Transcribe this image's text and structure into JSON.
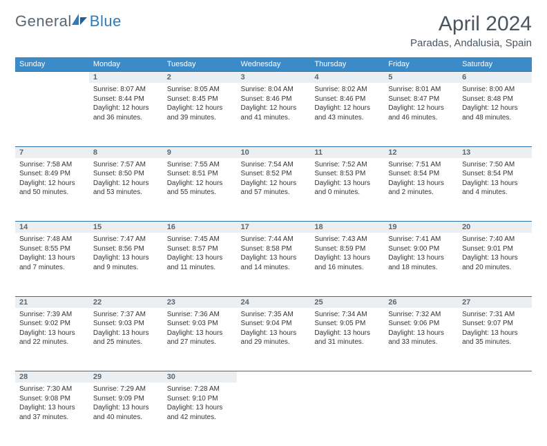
{
  "logo": {
    "part1": "General",
    "part2": "Blue"
  },
  "title": "April 2024",
  "location": "Paradas, Andalusia, Spain",
  "colors": {
    "header_bg": "#3b8bc9",
    "header_text": "#ffffff",
    "daynum_bg": "#eceff2",
    "border": "#2b6fa8",
    "logo_gray": "#5a6670",
    "logo_blue": "#2b7bbf"
  },
  "weekdays": [
    "Sunday",
    "Monday",
    "Tuesday",
    "Wednesday",
    "Thursday",
    "Friday",
    "Saturday"
  ],
  "weeks": [
    [
      null,
      {
        "d": "1",
        "sr": "8:07 AM",
        "ss": "8:44 PM",
        "dl": "12 hours and 36 minutes."
      },
      {
        "d": "2",
        "sr": "8:05 AM",
        "ss": "8:45 PM",
        "dl": "12 hours and 39 minutes."
      },
      {
        "d": "3",
        "sr": "8:04 AM",
        "ss": "8:46 PM",
        "dl": "12 hours and 41 minutes."
      },
      {
        "d": "4",
        "sr": "8:02 AM",
        "ss": "8:46 PM",
        "dl": "12 hours and 43 minutes."
      },
      {
        "d": "5",
        "sr": "8:01 AM",
        "ss": "8:47 PM",
        "dl": "12 hours and 46 minutes."
      },
      {
        "d": "6",
        "sr": "8:00 AM",
        "ss": "8:48 PM",
        "dl": "12 hours and 48 minutes."
      }
    ],
    [
      {
        "d": "7",
        "sr": "7:58 AM",
        "ss": "8:49 PM",
        "dl": "12 hours and 50 minutes."
      },
      {
        "d": "8",
        "sr": "7:57 AM",
        "ss": "8:50 PM",
        "dl": "12 hours and 53 minutes."
      },
      {
        "d": "9",
        "sr": "7:55 AM",
        "ss": "8:51 PM",
        "dl": "12 hours and 55 minutes."
      },
      {
        "d": "10",
        "sr": "7:54 AM",
        "ss": "8:52 PM",
        "dl": "12 hours and 57 minutes."
      },
      {
        "d": "11",
        "sr": "7:52 AM",
        "ss": "8:53 PM",
        "dl": "13 hours and 0 minutes."
      },
      {
        "d": "12",
        "sr": "7:51 AM",
        "ss": "8:54 PM",
        "dl": "13 hours and 2 minutes."
      },
      {
        "d": "13",
        "sr": "7:50 AM",
        "ss": "8:54 PM",
        "dl": "13 hours and 4 minutes."
      }
    ],
    [
      {
        "d": "14",
        "sr": "7:48 AM",
        "ss": "8:55 PM",
        "dl": "13 hours and 7 minutes."
      },
      {
        "d": "15",
        "sr": "7:47 AM",
        "ss": "8:56 PM",
        "dl": "13 hours and 9 minutes."
      },
      {
        "d": "16",
        "sr": "7:45 AM",
        "ss": "8:57 PM",
        "dl": "13 hours and 11 minutes."
      },
      {
        "d": "17",
        "sr": "7:44 AM",
        "ss": "8:58 PM",
        "dl": "13 hours and 14 minutes."
      },
      {
        "d": "18",
        "sr": "7:43 AM",
        "ss": "8:59 PM",
        "dl": "13 hours and 16 minutes."
      },
      {
        "d": "19",
        "sr": "7:41 AM",
        "ss": "9:00 PM",
        "dl": "13 hours and 18 minutes."
      },
      {
        "d": "20",
        "sr": "7:40 AM",
        "ss": "9:01 PM",
        "dl": "13 hours and 20 minutes."
      }
    ],
    [
      {
        "d": "21",
        "sr": "7:39 AM",
        "ss": "9:02 PM",
        "dl": "13 hours and 22 minutes."
      },
      {
        "d": "22",
        "sr": "7:37 AM",
        "ss": "9:03 PM",
        "dl": "13 hours and 25 minutes."
      },
      {
        "d": "23",
        "sr": "7:36 AM",
        "ss": "9:03 PM",
        "dl": "13 hours and 27 minutes."
      },
      {
        "d": "24",
        "sr": "7:35 AM",
        "ss": "9:04 PM",
        "dl": "13 hours and 29 minutes."
      },
      {
        "d": "25",
        "sr": "7:34 AM",
        "ss": "9:05 PM",
        "dl": "13 hours and 31 minutes."
      },
      {
        "d": "26",
        "sr": "7:32 AM",
        "ss": "9:06 PM",
        "dl": "13 hours and 33 minutes."
      },
      {
        "d": "27",
        "sr": "7:31 AM",
        "ss": "9:07 PM",
        "dl": "13 hours and 35 minutes."
      }
    ],
    [
      {
        "d": "28",
        "sr": "7:30 AM",
        "ss": "9:08 PM",
        "dl": "13 hours and 37 minutes."
      },
      {
        "d": "29",
        "sr": "7:29 AM",
        "ss": "9:09 PM",
        "dl": "13 hours and 40 minutes."
      },
      {
        "d": "30",
        "sr": "7:28 AM",
        "ss": "9:10 PM",
        "dl": "13 hours and 42 minutes."
      },
      null,
      null,
      null,
      null
    ]
  ]
}
